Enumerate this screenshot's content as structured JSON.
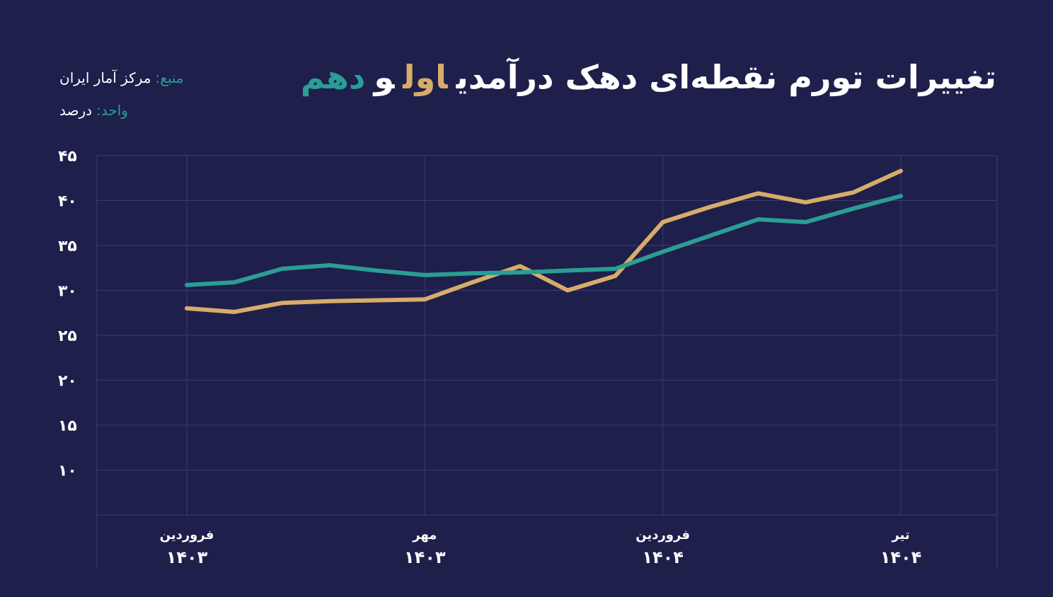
{
  "chart_data": {
    "type": "line",
    "title": "تغییرات تورم نقطه‌ای دهک درآمدی",
    "title_joiner": "و",
    "source_label": "منبع:",
    "source": "مرکز آمار ایران",
    "unit_label": "واحد:",
    "unit": "درصد",
    "categories": [
      "فروردین",
      null,
      null,
      null,
      null,
      "مهر",
      null,
      null,
      null,
      null,
      "فروردین",
      null,
      null,
      null,
      null,
      "تیر"
    ],
    "category_years": [
      "۱۴۰۳",
      null,
      null,
      null,
      null,
      "۱۴۰۳",
      null,
      null,
      null,
      null,
      "۱۴۰۴",
      null,
      null,
      null,
      null,
      "۱۴۰۴"
    ],
    "series": [
      {
        "name": "اول",
        "color": "#d7ac6a",
        "values": [
          28.0,
          27.6,
          28.6,
          28.8,
          28.9,
          29.0,
          30.9,
          32.7,
          30.0,
          31.6,
          37.6,
          39.3,
          40.8,
          39.8,
          40.9,
          43.3
        ]
      },
      {
        "name": "دهم",
        "color": "#2a9d94",
        "values": [
          30.6,
          30.9,
          32.4,
          32.8,
          32.2,
          31.7,
          31.9,
          32.0,
          32.2,
          32.4,
          34.3,
          36.1,
          37.9,
          37.6,
          39.1,
          40.5
        ]
      }
    ],
    "ylim": [
      5,
      45
    ],
    "yticks": [
      {
        "value": 10,
        "label": "۱۰"
      },
      {
        "value": 15,
        "label": "۱۵"
      },
      {
        "value": 20,
        "label": "۲۰"
      },
      {
        "value": 25,
        "label": "۲۵"
      },
      {
        "value": 30,
        "label": "۳۰"
      },
      {
        "value": 35,
        "label": "۳۵"
      },
      {
        "value": 40,
        "label": "۴۰"
      },
      {
        "value": 45,
        "label": "۴۵"
      }
    ],
    "grid": true
  }
}
